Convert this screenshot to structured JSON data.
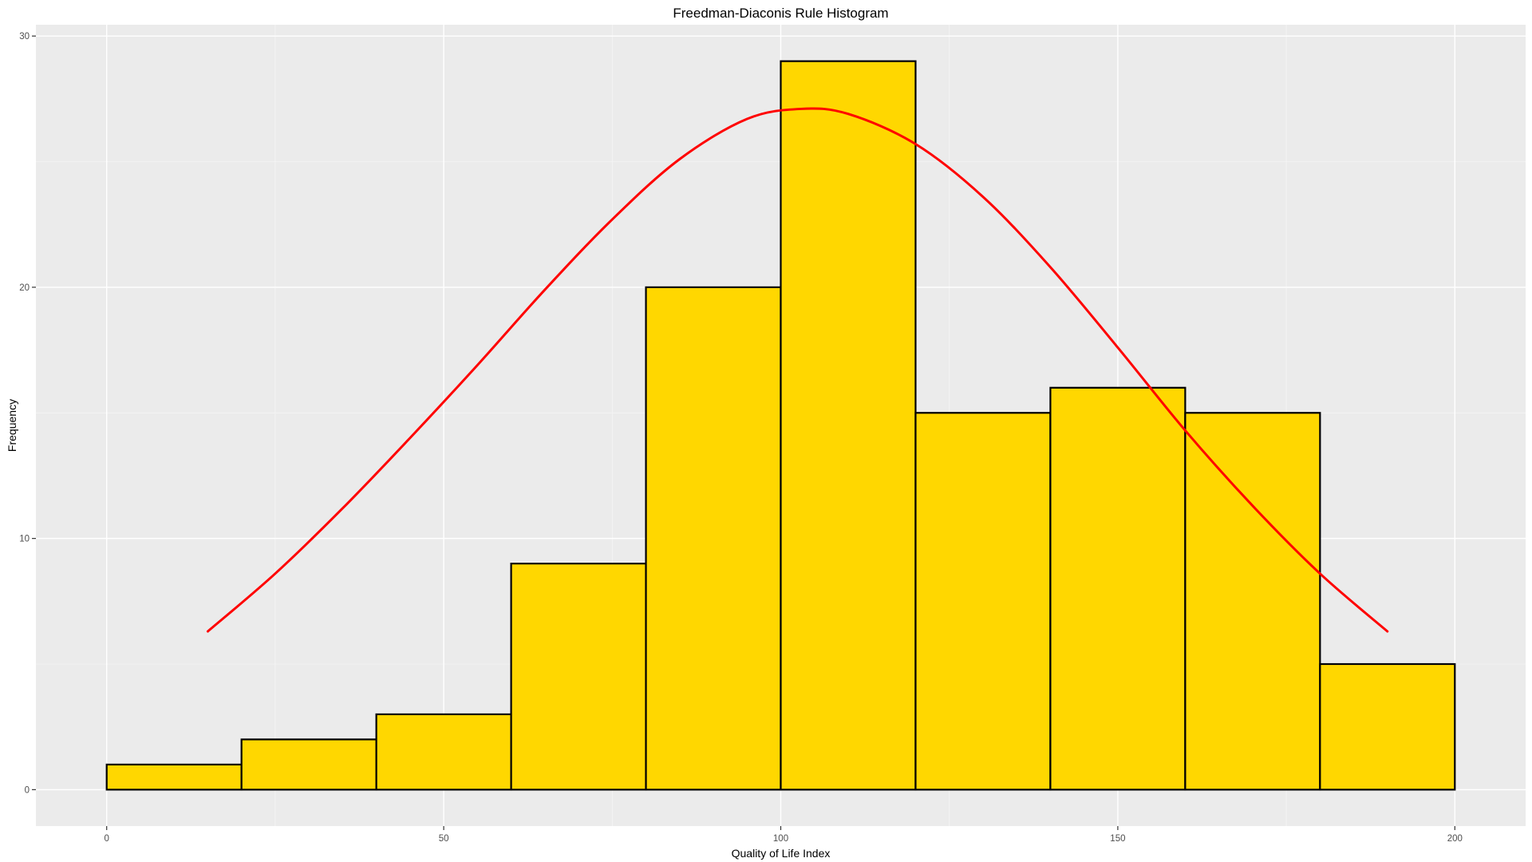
{
  "chart_data": {
    "type": "bar",
    "title": "Freedman-Diaconis Rule Histogram",
    "xlabel": "Quality of Life Index",
    "ylabel": "Frequency",
    "xlim": [
      -10.5,
      210.5
    ],
    "ylim": [
      -1.45,
      30.45
    ],
    "x_ticks": [
      0,
      50,
      100,
      150,
      200
    ],
    "x_tick_labels": [
      "0",
      "50",
      "100",
      "150",
      "200"
    ],
    "y_ticks": [
      0,
      10,
      20,
      30
    ],
    "y_tick_labels": [
      "0",
      "10",
      "20",
      "30"
    ],
    "bins": [
      {
        "start": 0,
        "end": 20,
        "count": 1
      },
      {
        "start": 20,
        "end": 40,
        "count": 2
      },
      {
        "start": 40,
        "end": 60,
        "count": 3
      },
      {
        "start": 60,
        "end": 80,
        "count": 9
      },
      {
        "start": 80,
        "end": 100,
        "count": 20
      },
      {
        "start": 100,
        "end": 120,
        "count": 29
      },
      {
        "start": 120,
        "end": 140,
        "count": 15
      },
      {
        "start": 140,
        "end": 160,
        "count": 16
      },
      {
        "start": 160,
        "end": 180,
        "count": 15
      },
      {
        "start": 180,
        "end": 200,
        "count": 5
      }
    ],
    "density_curve": {
      "x": [
        15,
        25,
        35,
        45,
        55,
        65,
        75,
        85,
        95,
        103,
        110,
        120,
        130,
        140,
        150,
        160,
        170,
        180,
        190
      ],
      "y": [
        6.3,
        8.6,
        11.2,
        14.0,
        16.9,
        19.9,
        22.7,
        25.1,
        26.7,
        27.1,
        26.9,
        25.7,
        23.6,
        20.8,
        17.6,
        14.3,
        11.3,
        8.6,
        6.3
      ]
    },
    "grid": true,
    "legend": "none",
    "colors": {
      "panel_background": "#ebebeb",
      "grid_major": "#ffffff",
      "grid_minor": "#f5f5f5",
      "bar_fill": "#ffd700",
      "bar_outline": "#000000",
      "curve": "#ff0000",
      "tick_label": "#4d4d4d",
      "tick_mark": "#333333"
    }
  }
}
